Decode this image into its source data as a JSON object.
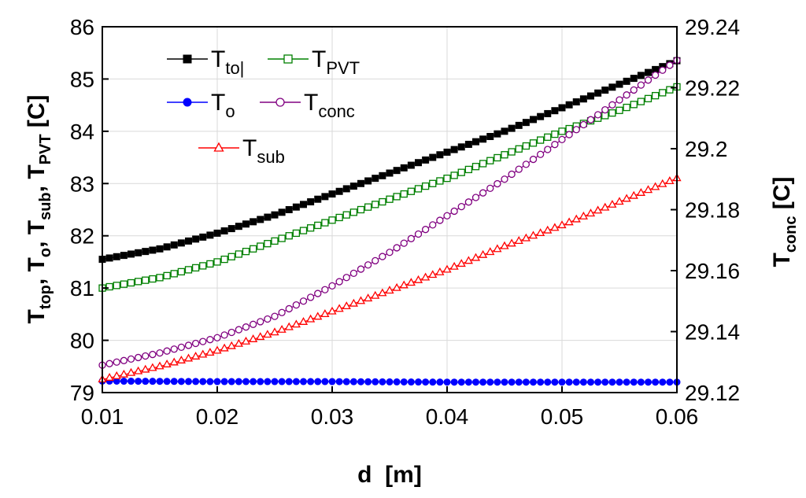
{
  "chart_data": {
    "type": "line",
    "x": [
      0.01,
      0.06
    ],
    "xlim": [
      0.01,
      0.06
    ],
    "xticks": [
      "0.01",
      "0.02",
      "0.03",
      "0.04",
      "0.05",
      "0.06"
    ],
    "xlabel": "d  [m]",
    "ylim_left": [
      79,
      86
    ],
    "yticks_left": [
      "79",
      "80",
      "81",
      "82",
      "83",
      "84",
      "85",
      "86"
    ],
    "ylabel_left": "T_top, T_o, T_sub, T_PVT [C]",
    "ylim_right": [
      29.12,
      29.24
    ],
    "yticks_right": [
      "29.12",
      "29.14",
      "29.16",
      "29.18",
      "29.2",
      "29.22",
      "29.24"
    ],
    "ylabel_right": "T_conc [C]",
    "grid": true,
    "series": [
      {
        "name": "T_top",
        "legend_main": "T",
        "legend_sub": "to|",
        "axis": "left",
        "color": "#000000",
        "marker": "filled-square",
        "x": [
          0.01,
          0.015,
          0.02,
          0.025,
          0.03,
          0.035,
          0.04,
          0.045,
          0.05,
          0.055,
          0.06
        ],
        "values": [
          81.55,
          81.75,
          82.05,
          82.4,
          82.8,
          83.2,
          83.6,
          84.0,
          84.45,
          84.9,
          85.35
        ]
      },
      {
        "name": "T_PVT",
        "legend_main": "T",
        "legend_sub": "PVT",
        "axis": "left",
        "color": "#008000",
        "marker": "open-square",
        "x": [
          0.01,
          0.015,
          0.02,
          0.025,
          0.03,
          0.035,
          0.04,
          0.045,
          0.05,
          0.055,
          0.06
        ],
        "values": [
          81.0,
          81.2,
          81.5,
          81.9,
          82.3,
          82.7,
          83.1,
          83.55,
          84.0,
          84.4,
          84.85
        ]
      },
      {
        "name": "T_o",
        "legend_main": "T",
        "legend_sub": "o",
        "axis": "left",
        "color": "#0000ff",
        "marker": "filled-circle",
        "x": [
          0.01,
          0.02,
          0.03,
          0.04,
          0.05,
          0.06
        ],
        "values": [
          79.22,
          79.21,
          79.21,
          79.2,
          79.2,
          79.2
        ]
      },
      {
        "name": "T_conc",
        "legend_main": "T",
        "legend_sub": "conc",
        "axis": "right",
        "color": "#800080",
        "marker": "open-circle",
        "x": [
          0.01,
          0.015,
          0.02,
          0.025,
          0.03,
          0.035,
          0.04,
          0.045,
          0.05,
          0.055,
          0.06
        ],
        "values": [
          29.129,
          29.133,
          29.138,
          29.145,
          29.155,
          29.166,
          29.178,
          29.19,
          29.203,
          29.216,
          29.229
        ]
      },
      {
        "name": "T_sub",
        "legend_main": "T",
        "legend_sub": "sub",
        "axis": "left",
        "color": "#ff0000",
        "marker": "open-triangle",
        "x": [
          0.01,
          0.015,
          0.02,
          0.025,
          0.03,
          0.035,
          0.04,
          0.045,
          0.05,
          0.055,
          0.06
        ],
        "values": [
          79.25,
          79.5,
          79.8,
          80.15,
          80.55,
          80.95,
          81.35,
          81.8,
          82.2,
          82.65,
          83.1
        ]
      }
    ]
  }
}
